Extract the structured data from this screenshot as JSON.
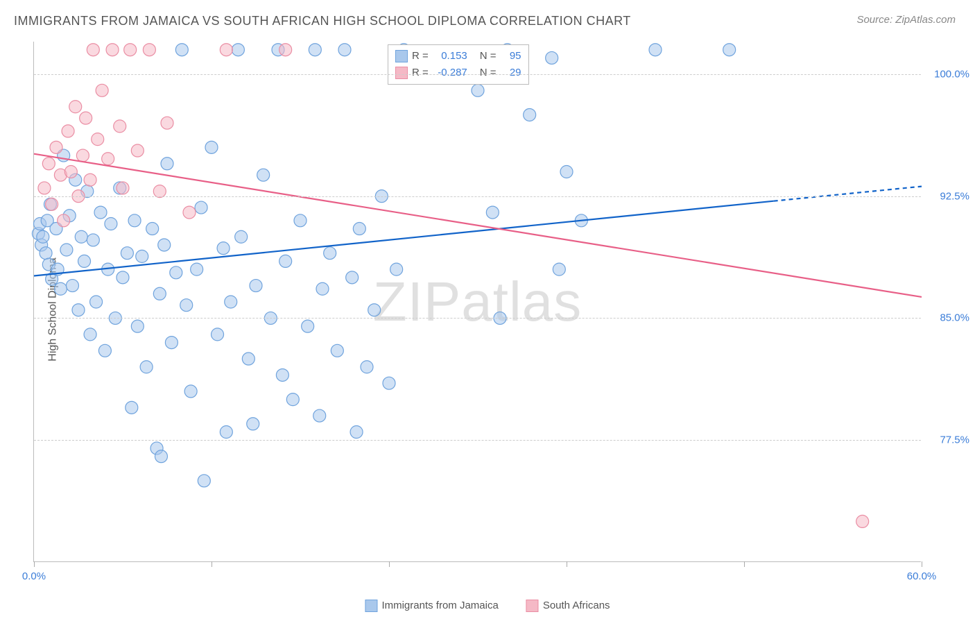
{
  "title": "IMMIGRANTS FROM JAMAICA VS SOUTH AFRICAN HIGH SCHOOL DIPLOMA CORRELATION CHART",
  "source": "Source: ZipAtlas.com",
  "y_axis_label": "High School Diploma",
  "watermark_a": "ZIP",
  "watermark_b": "atlas",
  "chart": {
    "type": "scatter",
    "xlim": [
      0,
      60
    ],
    "ylim": [
      70,
      102
    ],
    "x_ticks": [
      0,
      12,
      24,
      36,
      48,
      60
    ],
    "x_tick_labels": {
      "0": "0.0%",
      "60": "60.0%"
    },
    "y_grid": [
      77.5,
      85.0,
      92.5,
      100.0
    ],
    "y_tick_labels": [
      "77.5%",
      "85.0%",
      "92.5%",
      "100.0%"
    ],
    "background_color": "#ffffff",
    "grid_color": "#cccccc",
    "axis_color": "#bbbbbb",
    "label_fontsize": 15,
    "title_fontsize": 18,
    "marker_radius": 9,
    "marker_opacity": 0.55,
    "line_width": 2.2,
    "series": [
      {
        "id": "jamaica",
        "legend_label": "Immigrants from Jamaica",
        "color_fill": "#a9c8ec",
        "color_stroke": "#6fa3dd",
        "line_color": "#1163c9",
        "r_label": "R =",
        "r_value": "0.153",
        "n_label": "N =",
        "n_value": "95",
        "trend": {
          "x1": 0,
          "y1": 87.6,
          "x2": 50,
          "y2": 92.2,
          "dash_x2": 60,
          "dash_y2": 93.1
        },
        "points": [
          [
            0.3,
            90.2
          ],
          [
            0.4,
            90.8
          ],
          [
            0.5,
            89.5
          ],
          [
            0.6,
            90.0
          ],
          [
            0.8,
            89.0
          ],
          [
            0.9,
            91.0
          ],
          [
            1.0,
            88.3
          ],
          [
            1.1,
            92.0
          ],
          [
            1.2,
            87.4
          ],
          [
            1.5,
            90.5
          ],
          [
            1.6,
            88.0
          ],
          [
            1.8,
            86.8
          ],
          [
            2.0,
            95.0
          ],
          [
            2.2,
            89.2
          ],
          [
            2.4,
            91.3
          ],
          [
            2.6,
            87.0
          ],
          [
            2.8,
            93.5
          ],
          [
            3.0,
            85.5
          ],
          [
            3.2,
            90.0
          ],
          [
            3.4,
            88.5
          ],
          [
            3.6,
            92.8
          ],
          [
            3.8,
            84.0
          ],
          [
            4.0,
            89.8
          ],
          [
            4.2,
            86.0
          ],
          [
            4.5,
            91.5
          ],
          [
            4.8,
            83.0
          ],
          [
            5.0,
            88.0
          ],
          [
            5.2,
            90.8
          ],
          [
            5.5,
            85.0
          ],
          [
            5.8,
            93.0
          ],
          [
            6.0,
            87.5
          ],
          [
            6.3,
            89.0
          ],
          [
            6.6,
            79.5
          ],
          [
            6.8,
            91.0
          ],
          [
            7.0,
            84.5
          ],
          [
            7.3,
            88.8
          ],
          [
            7.6,
            82.0
          ],
          [
            8.0,
            90.5
          ],
          [
            8.3,
            77.0
          ],
          [
            8.5,
            86.5
          ],
          [
            8.8,
            89.5
          ],
          [
            9.0,
            94.5
          ],
          [
            9.3,
            83.5
          ],
          [
            9.6,
            87.8
          ],
          [
            10.0,
            101.5
          ],
          [
            10.3,
            85.8
          ],
          [
            10.6,
            80.5
          ],
          [
            11.0,
            88.0
          ],
          [
            11.3,
            91.8
          ],
          [
            12.0,
            95.5
          ],
          [
            12.4,
            84.0
          ],
          [
            12.8,
            89.3
          ],
          [
            13.0,
            78.0
          ],
          [
            13.3,
            86.0
          ],
          [
            13.8,
            101.5
          ],
          [
            14.0,
            90.0
          ],
          [
            14.5,
            82.5
          ],
          [
            15.0,
            87.0
          ],
          [
            15.5,
            93.8
          ],
          [
            16.0,
            85.0
          ],
          [
            16.5,
            101.5
          ],
          [
            17.0,
            88.5
          ],
          [
            17.5,
            80.0
          ],
          [
            18.0,
            91.0
          ],
          [
            18.5,
            84.5
          ],
          [
            19.0,
            101.5
          ],
          [
            19.5,
            86.8
          ],
          [
            20.0,
            89.0
          ],
          [
            20.5,
            83.0
          ],
          [
            21.0,
            101.5
          ],
          [
            21.5,
            87.5
          ],
          [
            22.0,
            90.5
          ],
          [
            22.5,
            82.0
          ],
          [
            23.0,
            85.5
          ],
          [
            23.5,
            92.5
          ],
          [
            24.0,
            81.0
          ],
          [
            24.5,
            88.0
          ],
          [
            25.0,
            101.5
          ],
          [
            8.6,
            76.5
          ],
          [
            11.5,
            75.0
          ],
          [
            14.8,
            78.5
          ],
          [
            16.8,
            81.5
          ],
          [
            19.3,
            79.0
          ],
          [
            21.8,
            78.0
          ],
          [
            30.0,
            99.0
          ],
          [
            31.0,
            91.5
          ],
          [
            31.5,
            85.0
          ],
          [
            32.0,
            101.5
          ],
          [
            33.5,
            97.5
          ],
          [
            35.0,
            101.0
          ],
          [
            35.5,
            88.0
          ],
          [
            36.0,
            94.0
          ],
          [
            37.0,
            91.0
          ],
          [
            42.0,
            101.5
          ],
          [
            47.0,
            101.5
          ]
        ]
      },
      {
        "id": "south_africans",
        "legend_label": "South Africans",
        "color_fill": "#f5b9c6",
        "color_stroke": "#ea8da3",
        "line_color": "#e85f87",
        "r_label": "R =",
        "r_value": "-0.287",
        "n_label": "N =",
        "n_value": "29",
        "trend": {
          "x1": 0,
          "y1": 95.1,
          "x2": 60,
          "y2": 86.3
        },
        "points": [
          [
            0.7,
            93.0
          ],
          [
            1.0,
            94.5
          ],
          [
            1.2,
            92.0
          ],
          [
            1.5,
            95.5
          ],
          [
            1.8,
            93.8
          ],
          [
            2.0,
            91.0
          ],
          [
            2.3,
            96.5
          ],
          [
            2.5,
            94.0
          ],
          [
            2.8,
            98.0
          ],
          [
            3.0,
            92.5
          ],
          [
            3.3,
            95.0
          ],
          [
            3.5,
            97.3
          ],
          [
            3.8,
            93.5
          ],
          [
            4.0,
            101.5
          ],
          [
            4.3,
            96.0
          ],
          [
            4.6,
            99.0
          ],
          [
            5.0,
            94.8
          ],
          [
            5.3,
            101.5
          ],
          [
            5.8,
            96.8
          ],
          [
            6.0,
            93.0
          ],
          [
            6.5,
            101.5
          ],
          [
            7.0,
            95.3
          ],
          [
            7.8,
            101.5
          ],
          [
            8.5,
            92.8
          ],
          [
            9.0,
            97.0
          ],
          [
            10.5,
            91.5
          ],
          [
            13.0,
            101.5
          ],
          [
            17.0,
            101.5
          ],
          [
            56.0,
            72.5
          ]
        ]
      }
    ]
  },
  "bottom_legend": [
    {
      "label": "Immigrants from Jamaica",
      "fill": "#a9c8ec",
      "stroke": "#6fa3dd"
    },
    {
      "label": "South Africans",
      "fill": "#f5b9c6",
      "stroke": "#ea8da3"
    }
  ]
}
